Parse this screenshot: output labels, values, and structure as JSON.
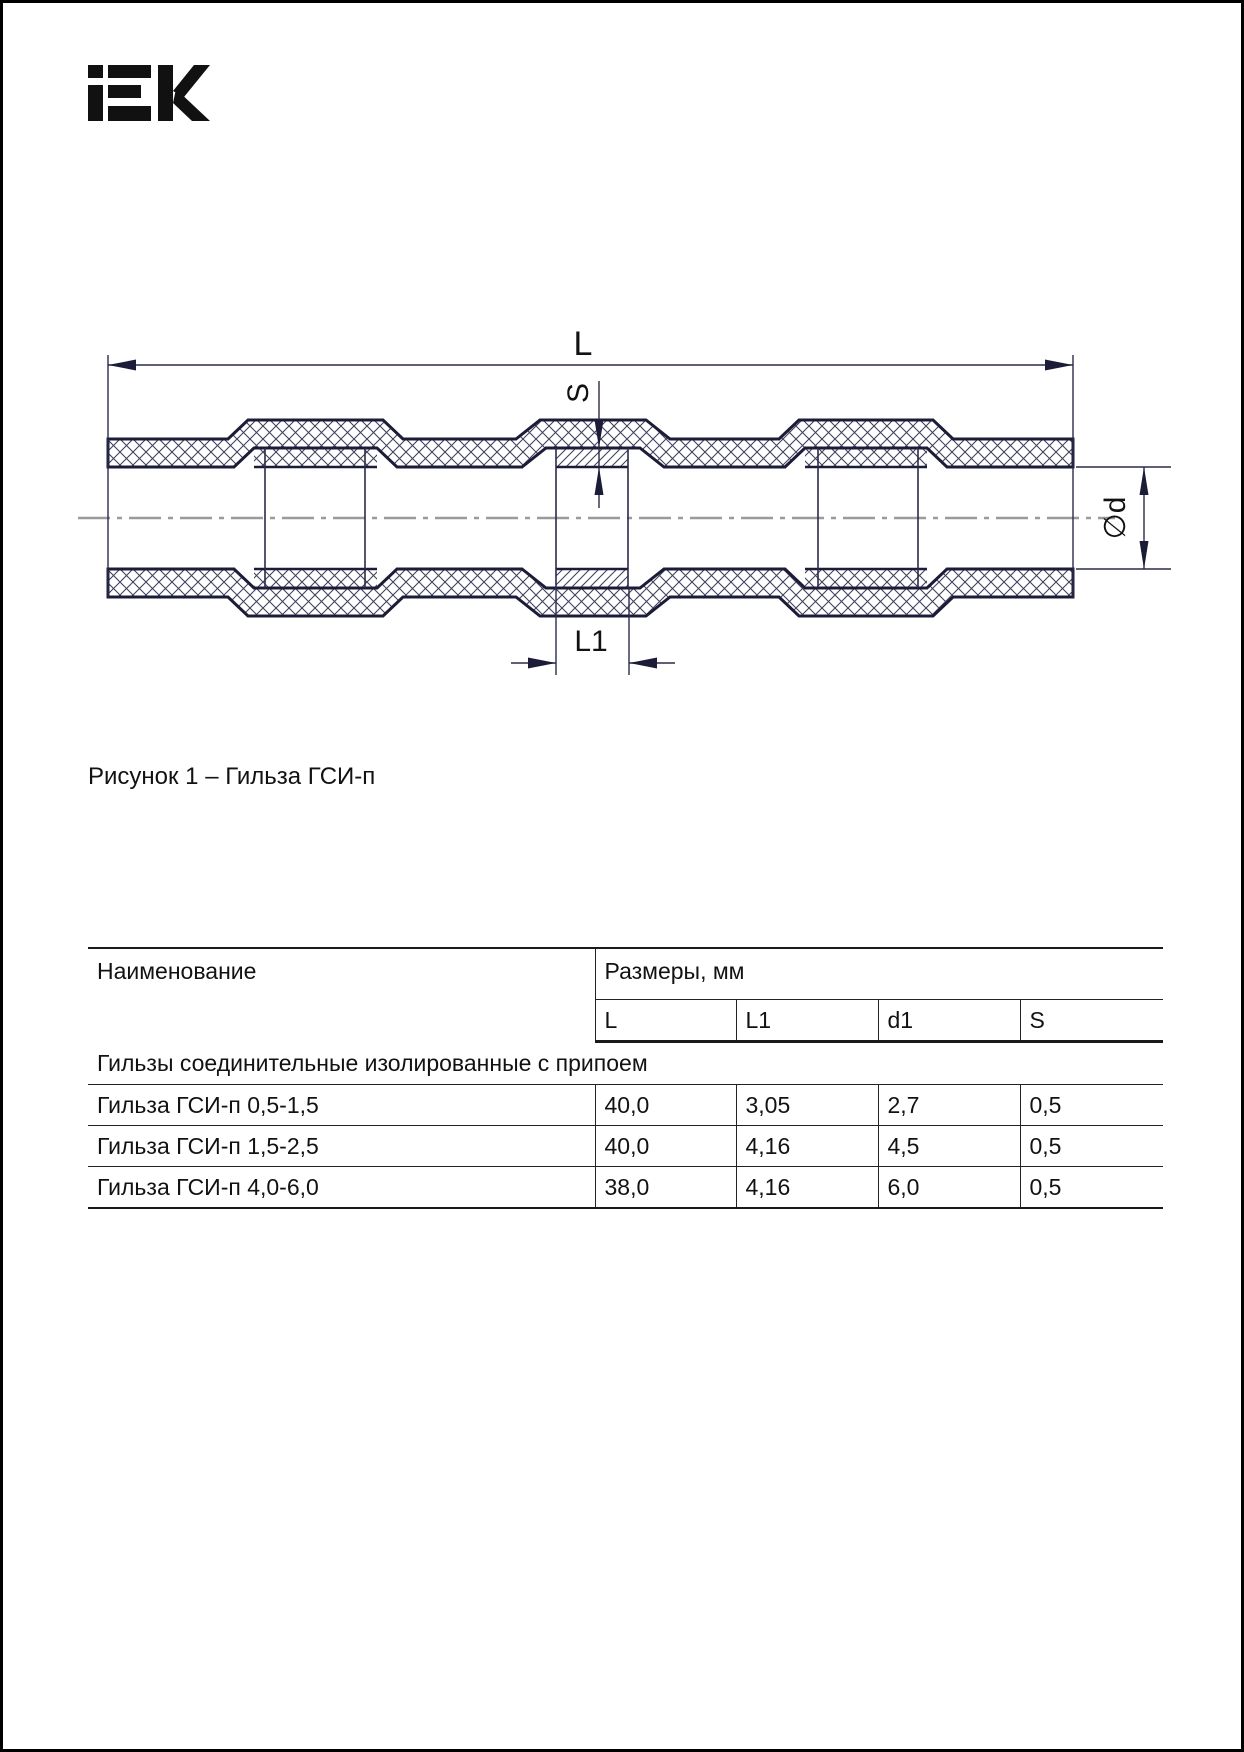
{
  "logo": {
    "text": "iEK",
    "color": "#111111"
  },
  "figure": {
    "caption": "Рисунок 1 – Гильза ГСИ-п",
    "dimension_labels": {
      "length": "L",
      "wall_thickness": "S",
      "diameter": "∅d",
      "solder_length": "L1"
    },
    "colors": {
      "outline": "#1c1c38",
      "hatch": "#41415f",
      "centerline": "#9a9a9a"
    }
  },
  "table": {
    "columns": {
      "name": "Наименование",
      "sizes_group": "Размеры, мм",
      "size_cols": [
        "L",
        "L1",
        "d1",
        "S"
      ]
    },
    "section_row": "Гильзы соединительные изолированные с припоем",
    "rows": [
      {
        "name": "Гильза ГСИ-п 0,5-1,5",
        "values": [
          "40,0",
          "3,05",
          "2,7",
          "0,5"
        ]
      },
      {
        "name": "Гильза ГСИ-п 1,5-2,5",
        "values": [
          "40,0",
          "4,16",
          "4,5",
          "0,5"
        ]
      },
      {
        "name": "Гильза ГСИ-п 4,0-6,0",
        "values": [
          "38,0",
          "4,16",
          "6,0",
          "0,5"
        ]
      }
    ]
  }
}
